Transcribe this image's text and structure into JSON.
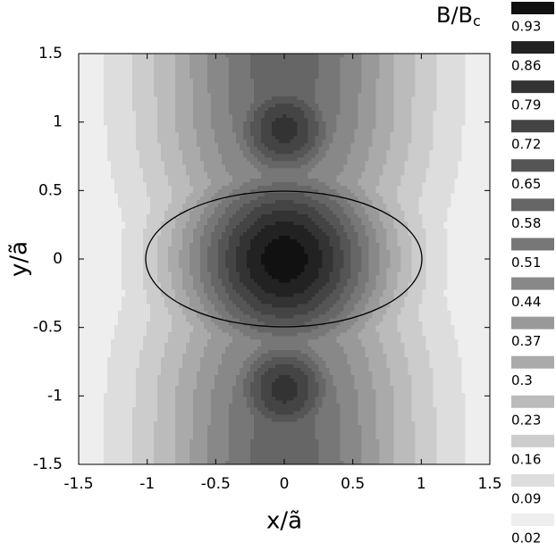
{
  "chart_data": {
    "type": "contour",
    "xlabel": "x/ã",
    "ylabel": "y/ã",
    "xlim": [
      -1.5,
      1.5
    ],
    "ylim": [
      -1.5,
      1.5
    ],
    "xticks": [
      -1.5,
      -1,
      -0.5,
      0,
      0.5,
      1,
      1.5
    ],
    "yticks": [
      -1.5,
      -1,
      -0.5,
      0,
      0.5,
      1,
      1.5
    ],
    "legend_title": {
      "text": "B/B",
      "subscript": "c"
    },
    "levels": [
      0.93,
      0.86,
      0.79,
      0.72,
      0.65,
      0.58,
      0.51,
      0.44,
      0.37,
      0.3,
      0.23,
      0.16,
      0.09,
      0.02
    ],
    "colors": [
      "#111111",
      "#222222",
      "#333333",
      "#444444",
      "#555555",
      "#666666",
      "#777777",
      "#888888",
      "#999999",
      "#aaaaaa",
      "#bbbbbb",
      "#cccccc",
      "#dddddd",
      "#eeeeee"
    ],
    "grid": false
  }
}
